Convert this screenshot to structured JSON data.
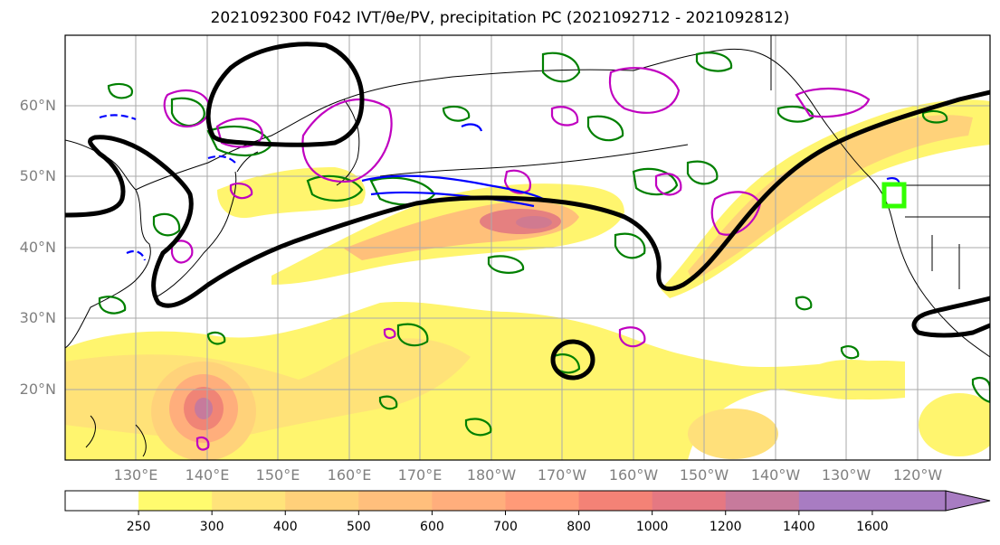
{
  "title": "2021092300 F042 IVT/θe/PV, precipitation PC (2021092712 - 2021092812)",
  "lat_labels": [
    "60°N",
    "50°N",
    "40°N",
    "30°N",
    "20°N"
  ],
  "lon_labels": [
    "130°E",
    "140°E",
    "150°E",
    "160°E",
    "170°E",
    "180°W",
    "170°W",
    "160°W",
    "150°W",
    "140°W",
    "130°W",
    "120°W"
  ],
  "colorbar": {
    "levels": [
      "250",
      "300",
      "400",
      "500",
      "600",
      "700",
      "800",
      "1000",
      "1200",
      "1400",
      "1600"
    ],
    "colors": [
      "#ffffff",
      "#fffb6e",
      "#ffe37a",
      "#ffd07a",
      "#ffbf7c",
      "#ffae7c",
      "#ff9a78",
      "#f48276",
      "#e57882",
      "#c77a9c",
      "#a87cc2"
    ],
    "extend": "max"
  },
  "colors": {
    "ivt_contour": "#000000",
    "theta_e_contour": "#008000",
    "pv_contour_magenta": "#c000c0",
    "pv_contour_blue": "#0000ff",
    "target_box": "#33ff00",
    "coast": "#000000",
    "grid": "#aaaaaa"
  }
}
